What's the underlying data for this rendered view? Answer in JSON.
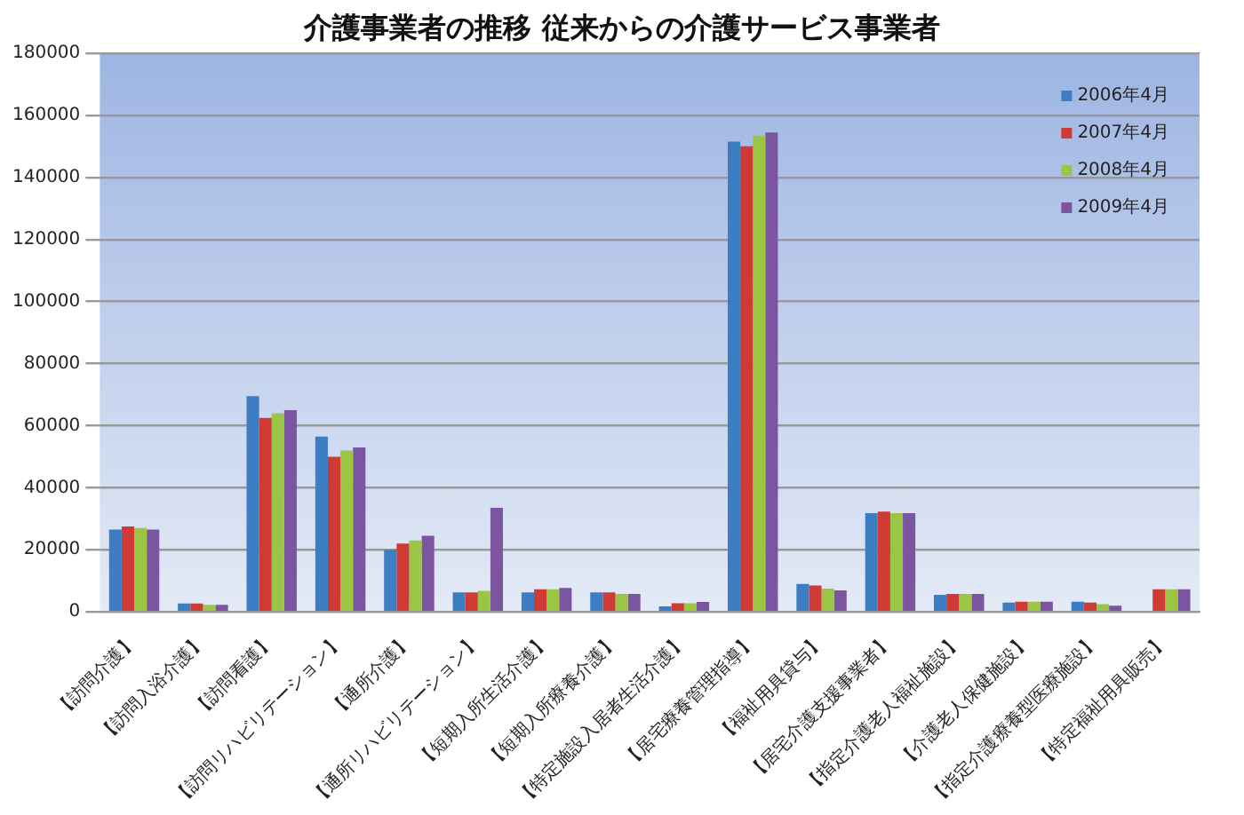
{
  "chart_data": {
    "type": "bar",
    "title": "介護事業者の推移  従来からの介護サービス事業者",
    "categories": [
      "【訪問介護】",
      "【訪問入浴介護】",
      "【訪問看護】",
      "【訪問リハビリテーション】",
      "【通所介護】",
      "【通所リハビリテーション】",
      "【短期入所生活介護】",
      "【短期入所療養介護】",
      "【特定施設入居者生活介護】",
      "【居宅療養管理指導】",
      "【福祉用具貸与】",
      "【居宅介護支援事業者】",
      "【指定介護老人福祉施設】",
      "【介護老人保健施設】",
      "【指定介護療養型医療施設】",
      "【特定福祉用具販売】"
    ],
    "series": [
      {
        "name": "2006年4月",
        "color": "#3c7dc4",
        "values": [
          26500,
          2700,
          69500,
          56500,
          20000,
          6300,
          6300,
          6300,
          1800,
          151500,
          9000,
          31800,
          5500,
          3000,
          3300,
          null
        ]
      },
      {
        "name": "2007年4月",
        "color": "#d03a35",
        "values": [
          27500,
          2700,
          62500,
          50000,
          22000,
          6300,
          7300,
          6300,
          2800,
          150000,
          8500,
          32300,
          5800,
          3300,
          3000,
          7300
        ]
      },
      {
        "name": "2008年4月",
        "color": "#9bc545",
        "values": [
          27000,
          2300,
          64000,
          52000,
          23000,
          6800,
          7300,
          5800,
          2800,
          153500,
          7500,
          31800,
          5800,
          3300,
          2500,
          7300
        ]
      },
      {
        "name": "2009年4月",
        "color": "#7c55a0",
        "values": [
          26500,
          2300,
          65000,
          53000,
          24500,
          33500,
          7700,
          5800,
          3200,
          154500,
          6900,
          31800,
          5800,
          3300,
          2000,
          7300
        ]
      }
    ],
    "ylim": [
      0,
      180000
    ],
    "yticks": [
      0,
      20000,
      40000,
      60000,
      80000,
      100000,
      120000,
      140000,
      160000,
      180000
    ],
    "grid": "y",
    "legend": "top right"
  }
}
